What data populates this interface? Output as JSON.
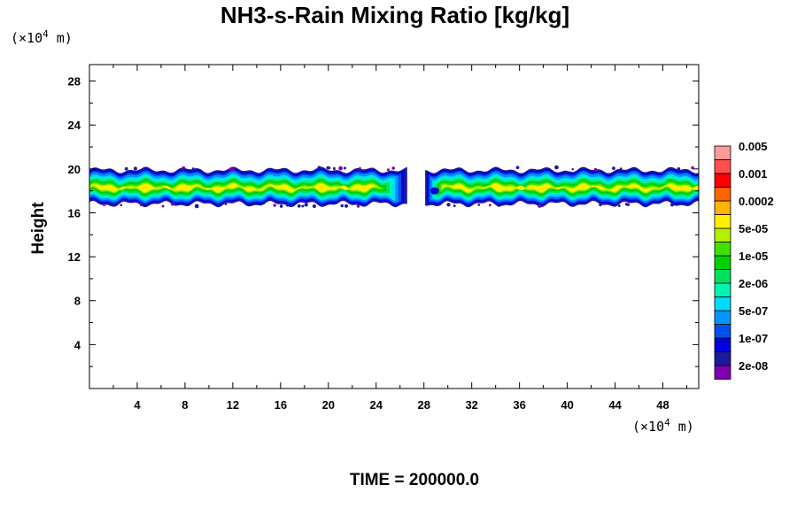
{
  "chart_data": {
    "type": "contour",
    "title": "NH3-s-Rain Mixing Ratio [kg/kg]",
    "ylabel": "Height",
    "x_unit_label": [
      "(×10",
      "4",
      " m)"
    ],
    "y_unit_label": [
      "(×10",
      "4",
      " m)"
    ],
    "xlim": [
      0,
      51
    ],
    "ylim": [
      0,
      29.5
    ],
    "xticks": [
      4,
      8,
      12,
      16,
      20,
      24,
      28,
      32,
      36,
      40,
      44,
      48
    ],
    "yticks": [
      4,
      8,
      12,
      16,
      20,
      24,
      28
    ],
    "footer": "TIME = 200000.0",
    "colorbar": {
      "colors": [
        "#8000b0",
        "#1a1aa0",
        "#0000dc",
        "#0050f0",
        "#0096ff",
        "#00dcff",
        "#00f5b0",
        "#00e060",
        "#00d000",
        "#40e000",
        "#b4f000",
        "#fff000",
        "#ffb400",
        "#ff6400",
        "#ff0000",
        "#ff5050",
        "#ff9a9a"
      ],
      "labels": [
        "2e-08",
        "1e-07",
        "5e-07",
        "2e-06",
        "1e-05",
        "5e-05",
        "0.0002",
        "0.001",
        "0.005"
      ]
    },
    "layer": {
      "description_values": "cloud band of NH3 snow-rain between roughly 17 and 20 (x10^4 m) height across the domain, with a gap near x = 26.5 to 28",
      "bottom_km": 16.8,
      "top_km": 19.9,
      "gap": [
        26.6,
        28.1
      ],
      "core_max_level_index": 11
    }
  }
}
